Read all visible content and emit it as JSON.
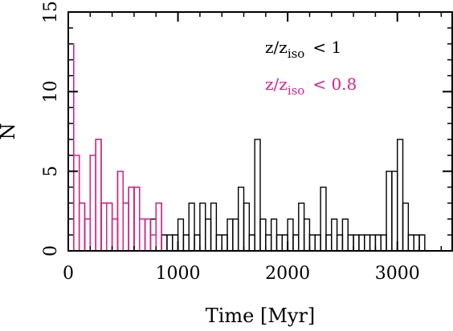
{
  "chart_data": {
    "type": "histogram",
    "xlabel": "Time [Myr]",
    "ylabel": "N",
    "xlim": [
      0,
      3500
    ],
    "ylim": [
      0,
      15
    ],
    "bin_width": 50,
    "x_ticks": [
      0,
      1000,
      2000,
      3000
    ],
    "y_ticks": [
      0,
      5,
      10,
      15
    ],
    "grid": false,
    "legend_position": "top-right",
    "colors": {
      "black": "#000000",
      "magenta": "#e0208c"
    },
    "series": [
      {
        "legend_text": {
          "var": "z/z",
          "sub": "iso",
          "rel": "< 1"
        },
        "color": "#000000",
        "bins": [
          {
            "x": 0,
            "count": 13
          },
          {
            "x": 50,
            "count": 6
          },
          {
            "x": 100,
            "count": 3
          },
          {
            "x": 150,
            "count": 2
          },
          {
            "x": 200,
            "count": 6
          },
          {
            "x": 250,
            "count": 7
          },
          {
            "x": 300,
            "count": 3
          },
          {
            "x": 350,
            "count": 3
          },
          {
            "x": 400,
            "count": 2
          },
          {
            "x": 450,
            "count": 5
          },
          {
            "x": 500,
            "count": 3
          },
          {
            "x": 550,
            "count": 4
          },
          {
            "x": 600,
            "count": 4
          },
          {
            "x": 650,
            "count": 2
          },
          {
            "x": 700,
            "count": 2
          },
          {
            "x": 750,
            "count": 2
          },
          {
            "x": 800,
            "count": 3
          },
          {
            "x": 850,
            "count": 1
          },
          {
            "x": 900,
            "count": 1
          },
          {
            "x": 950,
            "count": 1
          },
          {
            "x": 1000,
            "count": 2
          },
          {
            "x": 1050,
            "count": 1
          },
          {
            "x": 1100,
            "count": 3
          },
          {
            "x": 1150,
            "count": 1
          },
          {
            "x": 1200,
            "count": 3
          },
          {
            "x": 1250,
            "count": 2
          },
          {
            "x": 1300,
            "count": 3
          },
          {
            "x": 1350,
            "count": 1
          },
          {
            "x": 1400,
            "count": 1
          },
          {
            "x": 1450,
            "count": 2
          },
          {
            "x": 1500,
            "count": 2
          },
          {
            "x": 1550,
            "count": 4
          },
          {
            "x": 1600,
            "count": 3
          },
          {
            "x": 1650,
            "count": 1
          },
          {
            "x": 1700,
            "count": 7
          },
          {
            "x": 1750,
            "count": 2
          },
          {
            "x": 1800,
            "count": 1
          },
          {
            "x": 1850,
            "count": 2
          },
          {
            "x": 1900,
            "count": 1
          },
          {
            "x": 1950,
            "count": 1
          },
          {
            "x": 2000,
            "count": 2
          },
          {
            "x": 2050,
            "count": 1
          },
          {
            "x": 2100,
            "count": 3
          },
          {
            "x": 2150,
            "count": 2
          },
          {
            "x": 2200,
            "count": 1
          },
          {
            "x": 2250,
            "count": 1
          },
          {
            "x": 2300,
            "count": 4
          },
          {
            "x": 2350,
            "count": 1
          },
          {
            "x": 2400,
            "count": 2
          },
          {
            "x": 2450,
            "count": 1
          },
          {
            "x": 2500,
            "count": 2
          },
          {
            "x": 2550,
            "count": 1
          },
          {
            "x": 2600,
            "count": 1
          },
          {
            "x": 2650,
            "count": 1
          },
          {
            "x": 2700,
            "count": 1
          },
          {
            "x": 2750,
            "count": 1
          },
          {
            "x": 2800,
            "count": 1
          },
          {
            "x": 2850,
            "count": 1
          },
          {
            "x": 2900,
            "count": 5
          },
          {
            "x": 2950,
            "count": 5
          },
          {
            "x": 3000,
            "count": 7
          },
          {
            "x": 3050,
            "count": 3
          },
          {
            "x": 3100,
            "count": 1
          },
          {
            "x": 3150,
            "count": 1
          },
          {
            "x": 3200,
            "count": 1
          }
        ]
      },
      {
        "legend_text": {
          "var": "z/z",
          "sub": "iso",
          "rel": "< 0.8"
        },
        "color": "#e0208c",
        "bins": [
          {
            "x": 0,
            "count": 13
          },
          {
            "x": 50,
            "count": 6
          },
          {
            "x": 100,
            "count": 3
          },
          {
            "x": 150,
            "count": 2
          },
          {
            "x": 200,
            "count": 6
          },
          {
            "x": 250,
            "count": 7
          },
          {
            "x": 300,
            "count": 3
          },
          {
            "x": 350,
            "count": 3
          },
          {
            "x": 400,
            "count": 2
          },
          {
            "x": 450,
            "count": 5
          },
          {
            "x": 500,
            "count": 3
          },
          {
            "x": 550,
            "count": 4
          },
          {
            "x": 600,
            "count": 4
          },
          {
            "x": 650,
            "count": 2
          },
          {
            "x": 700,
            "count": 2
          },
          {
            "x": 750,
            "count": 1
          },
          {
            "x": 800,
            "count": 3
          }
        ]
      }
    ]
  }
}
